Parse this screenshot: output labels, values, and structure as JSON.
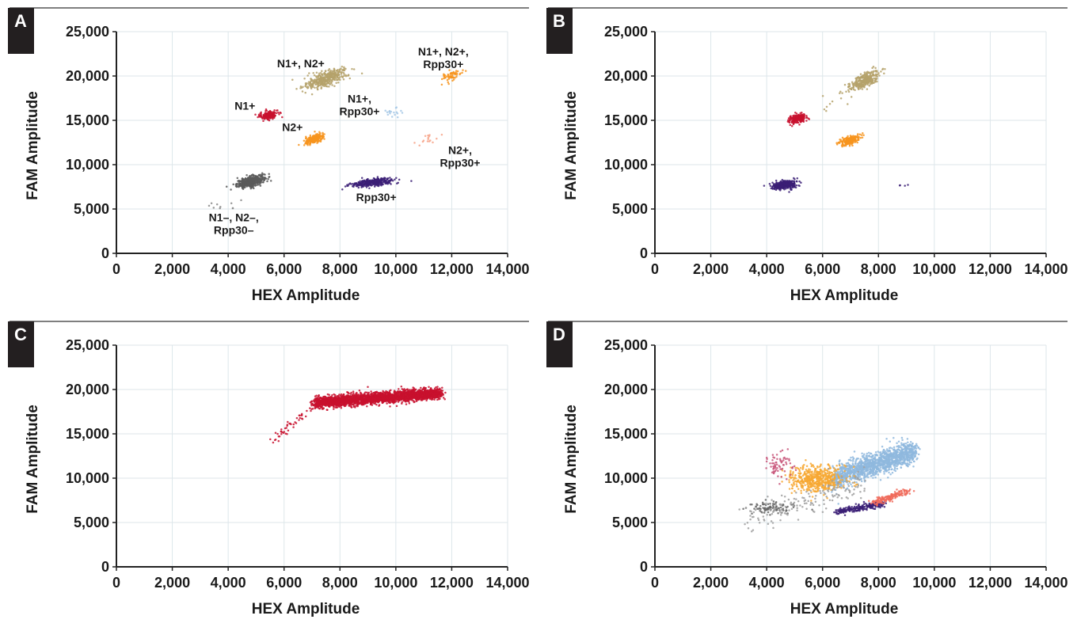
{
  "chart_data": [
    {
      "type": "scatter",
      "panel_label": "A",
      "xlabel": "HEX Amplitude",
      "ylabel": "FAM Amplitude",
      "xlim": [
        0,
        14000
      ],
      "ylim": [
        0,
        25000
      ],
      "xticks": [
        0,
        2000,
        4000,
        6000,
        8000,
        10000,
        12000,
        14000
      ],
      "yticks": [
        0,
        5000,
        10000,
        15000,
        20000,
        25000
      ],
      "xtick_labels": [
        "0",
        "2,000",
        "4,000",
        "6,000",
        "8,000",
        "10,000",
        "12,000",
        "14,000"
      ],
      "ytick_labels": [
        "0",
        "5,000",
        "10,000",
        "15,000",
        "20,000",
        "25,000"
      ],
      "grid": true,
      "clusters": [
        {
          "color": "#5a5a5a",
          "center": [
            4800,
            8100
          ],
          "spread": [
            260,
            280
          ],
          "count": 460,
          "angle": 20
        },
        {
          "color": "#c8102e",
          "center": [
            5450,
            15600
          ],
          "spread": [
            170,
            250
          ],
          "count": 170,
          "angle": 15
        },
        {
          "color": "#f7941d",
          "center": [
            7100,
            12900
          ],
          "spread": [
            200,
            260
          ],
          "count": 190,
          "angle": 25
        },
        {
          "color": "#b5a26b",
          "center": [
            7500,
            19700
          ],
          "spread": [
            420,
            420
          ],
          "count": 380,
          "angle": 25
        },
        {
          "color": "#a6c8e6",
          "center": [
            9900,
            15800
          ],
          "spread": [
            200,
            300
          ],
          "count": 18,
          "angle": 0
        },
        {
          "color": "#3b1f75",
          "center": [
            9200,
            8000
          ],
          "spread": [
            380,
            190
          ],
          "count": 330,
          "angle": 8
        },
        {
          "color": "#f7a58a",
          "center": [
            11200,
            12900
          ],
          "spread": [
            220,
            300
          ],
          "count": 16,
          "angle": 0
        },
        {
          "color": "#f7941d",
          "center": [
            12000,
            20000
          ],
          "spread": [
            200,
            300
          ],
          "count": 60,
          "angle": 15
        },
        {
          "color": "#8a8a8a",
          "center": [
            3600,
            5300
          ],
          "spread": [
            350,
            350
          ],
          "count": 10,
          "angle": 0
        }
      ],
      "annotations": [
        {
          "lines": [
            "N1+, N2+"
          ],
          "x": 6600,
          "y": 21000,
          "anchor": "middle"
        },
        {
          "lines": [
            "N1+, N2+,",
            "Rpp30+"
          ],
          "x": 11700,
          "y": 22300,
          "anchor": "middle"
        },
        {
          "lines": [
            "N1+"
          ],
          "x": 4600,
          "y": 16200,
          "anchor": "middle"
        },
        {
          "lines": [
            "N1+,",
            "Rpp30+"
          ],
          "x": 8700,
          "y": 17000,
          "anchor": "middle"
        },
        {
          "lines": [
            "N2+"
          ],
          "x": 6300,
          "y": 13800,
          "anchor": "middle"
        },
        {
          "lines": [
            "N2+,",
            "Rpp30+"
          ],
          "x": 12300,
          "y": 11200,
          "anchor": "middle"
        },
        {
          "lines": [
            "Rpp30+"
          ],
          "x": 9300,
          "y": 5900,
          "anchor": "middle"
        },
        {
          "lines": [
            "N1–, N2–,",
            "Rpp30–"
          ],
          "x": 4200,
          "y": 3600,
          "anchor": "middle"
        }
      ]
    },
    {
      "type": "scatter",
      "panel_label": "B",
      "xlabel": "HEX Amplitude",
      "ylabel": "FAM Amplitude",
      "xlim": [
        0,
        14000
      ],
      "ylim": [
        0,
        25000
      ],
      "xticks": [
        0,
        2000,
        4000,
        6000,
        8000,
        10000,
        12000,
        14000
      ],
      "yticks": [
        0,
        5000,
        10000,
        15000,
        20000,
        25000
      ],
      "xtick_labels": [
        "0",
        "2,000",
        "4,000",
        "6,000",
        "8,000",
        "10,000",
        "12,000",
        "14,000"
      ],
      "ytick_labels": [
        "0",
        "5,000",
        "10,000",
        "15,000",
        "20,000",
        "25,000"
      ],
      "grid": true,
      "clusters": [
        {
          "color": "#b5a26b",
          "center": [
            7500,
            19500
          ],
          "spread": [
            300,
            420
          ],
          "count": 330,
          "angle": 30
        },
        {
          "color": "#c8102e",
          "center": [
            5100,
            15200
          ],
          "spread": [
            170,
            230
          ],
          "count": 190,
          "angle": 15
        },
        {
          "color": "#f7941d",
          "center": [
            6950,
            12700
          ],
          "spread": [
            190,
            220
          ],
          "count": 220,
          "angle": 20
        },
        {
          "color": "#3b1f75",
          "center": [
            4650,
            7700
          ],
          "spread": [
            230,
            230
          ],
          "count": 340,
          "angle": 10
        },
        {
          "color": "#3b1f75",
          "center": [
            8800,
            7700
          ],
          "spread": [
            180,
            60
          ],
          "count": 4,
          "angle": 0
        },
        {
          "color": "#b5a26b",
          "center": [
            6200,
            17000
          ],
          "spread": [
            500,
            700
          ],
          "count": 8,
          "angle": 0
        }
      ],
      "annotations": []
    },
    {
      "type": "scatter",
      "panel_label": "C",
      "xlabel": "HEX Amplitude",
      "ylabel": "FAM Amplitude",
      "xlim": [
        0,
        14000
      ],
      "ylim": [
        0,
        25000
      ],
      "xticks": [
        0,
        2000,
        4000,
        6000,
        8000,
        10000,
        12000,
        14000
      ],
      "yticks": [
        0,
        5000,
        10000,
        15000,
        20000,
        25000
      ],
      "xtick_labels": [
        "0",
        "2,000",
        "4,000",
        "6,000",
        "8,000",
        "10,000",
        "12,000",
        "14,000"
      ],
      "ytick_labels": [
        "0",
        "5,000",
        "10,000",
        "15,000",
        "20,000",
        "25,000"
      ],
      "grid": true,
      "clusters": [
        {
          "color": "#c8102e",
          "band": {
            "x": [
              7100,
              11600
            ],
            "y_start": 18500,
            "y_end": 19600,
            "thickness": 700
          },
          "count": 2600
        },
        {
          "color": "#c8102e",
          "band": {
            "x": [
              5600,
              7100
            ],
            "y_start": 14200,
            "y_end": 18200,
            "thickness": 500
          },
          "count": 45
        }
      ],
      "annotations": []
    },
    {
      "type": "scatter",
      "panel_label": "D",
      "xlabel": "HEX Amplitude",
      "ylabel": "FAM Amplitude",
      "xlim": [
        0,
        14000
      ],
      "ylim": [
        0,
        25000
      ],
      "xticks": [
        0,
        2000,
        4000,
        6000,
        8000,
        10000,
        12000,
        14000
      ],
      "yticks": [
        0,
        5000,
        10000,
        15000,
        20000,
        25000
      ],
      "xtick_labels": [
        "0",
        "2,000",
        "4,000",
        "6,000",
        "8,000",
        "10,000",
        "12,000",
        "14,000"
      ],
      "ytick_labels": [
        "0",
        "5,000",
        "10,000",
        "15,000",
        "20,000",
        "25,000"
      ],
      "grid": true,
      "clusters": [
        {
          "color": "#8fb9de",
          "band": {
            "x": [
              6400,
              9300
            ],
            "y_start": 10000,
            "y_end": 13000,
            "thickness": 1500
          },
          "count": 1400
        },
        {
          "color": "#f7a832",
          "center": [
            5800,
            9900
          ],
          "spread": [
            480,
            700
          ],
          "count": 520,
          "angle": 0
        },
        {
          "color": "#c8567a",
          "center": [
            4500,
            11400
          ],
          "spread": [
            250,
            900
          ],
          "count": 70,
          "angle": 0
        },
        {
          "color": "#3b1f75",
          "band": {
            "x": [
              6500,
              8200
            ],
            "y_start": 6200,
            "y_end": 7100,
            "thickness": 400
          },
          "count": 220
        },
        {
          "color": "#f06a5a",
          "band": {
            "x": [
              7800,
              9100
            ],
            "y_start": 7200,
            "y_end": 8600,
            "thickness": 400
          },
          "count": 160
        },
        {
          "color": "#666666",
          "center": [
            4200,
            6600
          ],
          "spread": [
            450,
            320
          ],
          "count": 90,
          "angle": 0
        },
        {
          "color": "#a0a0a0",
          "band": {
            "x": [
              3200,
              7500
            ],
            "y_start": 5200,
            "y_end": 9500,
            "thickness": 1700
          },
          "count": 160
        }
      ],
      "annotations": []
    }
  ]
}
